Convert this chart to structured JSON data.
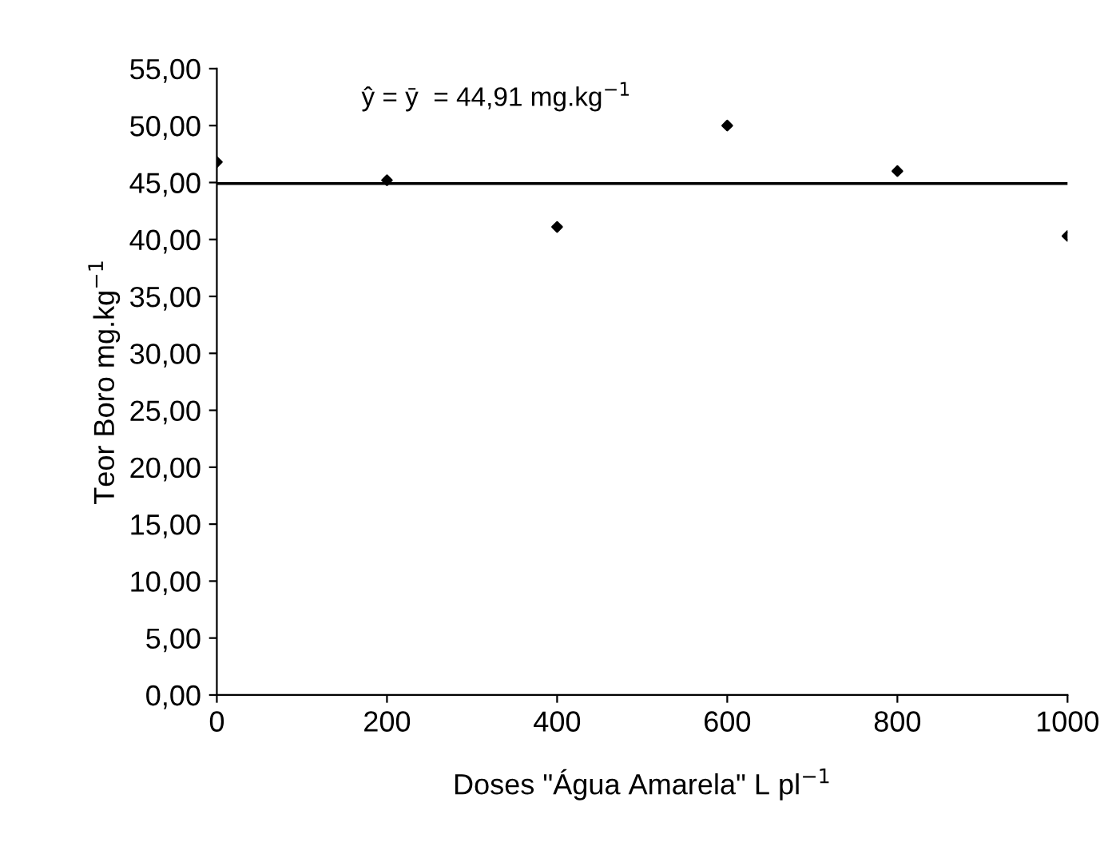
{
  "chart_data": {
    "type": "scatter",
    "xlabel": "Doses \"Água Amarela\" L pl$^{−1}$",
    "ylabel": "Teor Boro mg.kg$^{−1}$",
    "x": [
      0,
      200,
      400,
      600,
      800,
      1000
    ],
    "series": [
      {
        "color": "#000000",
        "values": [
          46.8,
          45.2,
          41.1,
          50.0,
          46.0,
          40.3
        ]
      }
    ],
    "marker": "diamond",
    "grid": false,
    "legend": false,
    "xlim": [
      0,
      1000
    ],
    "xticks": [
      0,
      200,
      400,
      600,
      800,
      1000
    ],
    "ylim": [
      0,
      55
    ],
    "yticks": [
      {
        "value": 0,
        "label": "0,00"
      },
      {
        "value": 5,
        "label": "5,00"
      },
      {
        "value": 10,
        "label": "10,00"
      },
      {
        "value": 15,
        "label": "15,00"
      },
      {
        "value": 20,
        "label": "20,00"
      },
      {
        "value": 25,
        "label": "25,00"
      },
      {
        "value": 30,
        "label": "30,00"
      },
      {
        "value": 35,
        "label": "35,00"
      },
      {
        "value": 40,
        "label": "40,00"
      },
      {
        "value": 45,
        "label": "45,00"
      },
      {
        "value": 50,
        "label": "50,00"
      },
      {
        "value": 55,
        "label": "55,00"
      }
    ],
    "ref_lines": [
      {
        "axis": "y",
        "value": 44.91,
        "color": "#000000",
        "line_style": "solid"
      }
    ],
    "annotations": [
      "ŷ = ȳ  = 44,91 mg.kg$^{−1}$"
    ]
  }
}
